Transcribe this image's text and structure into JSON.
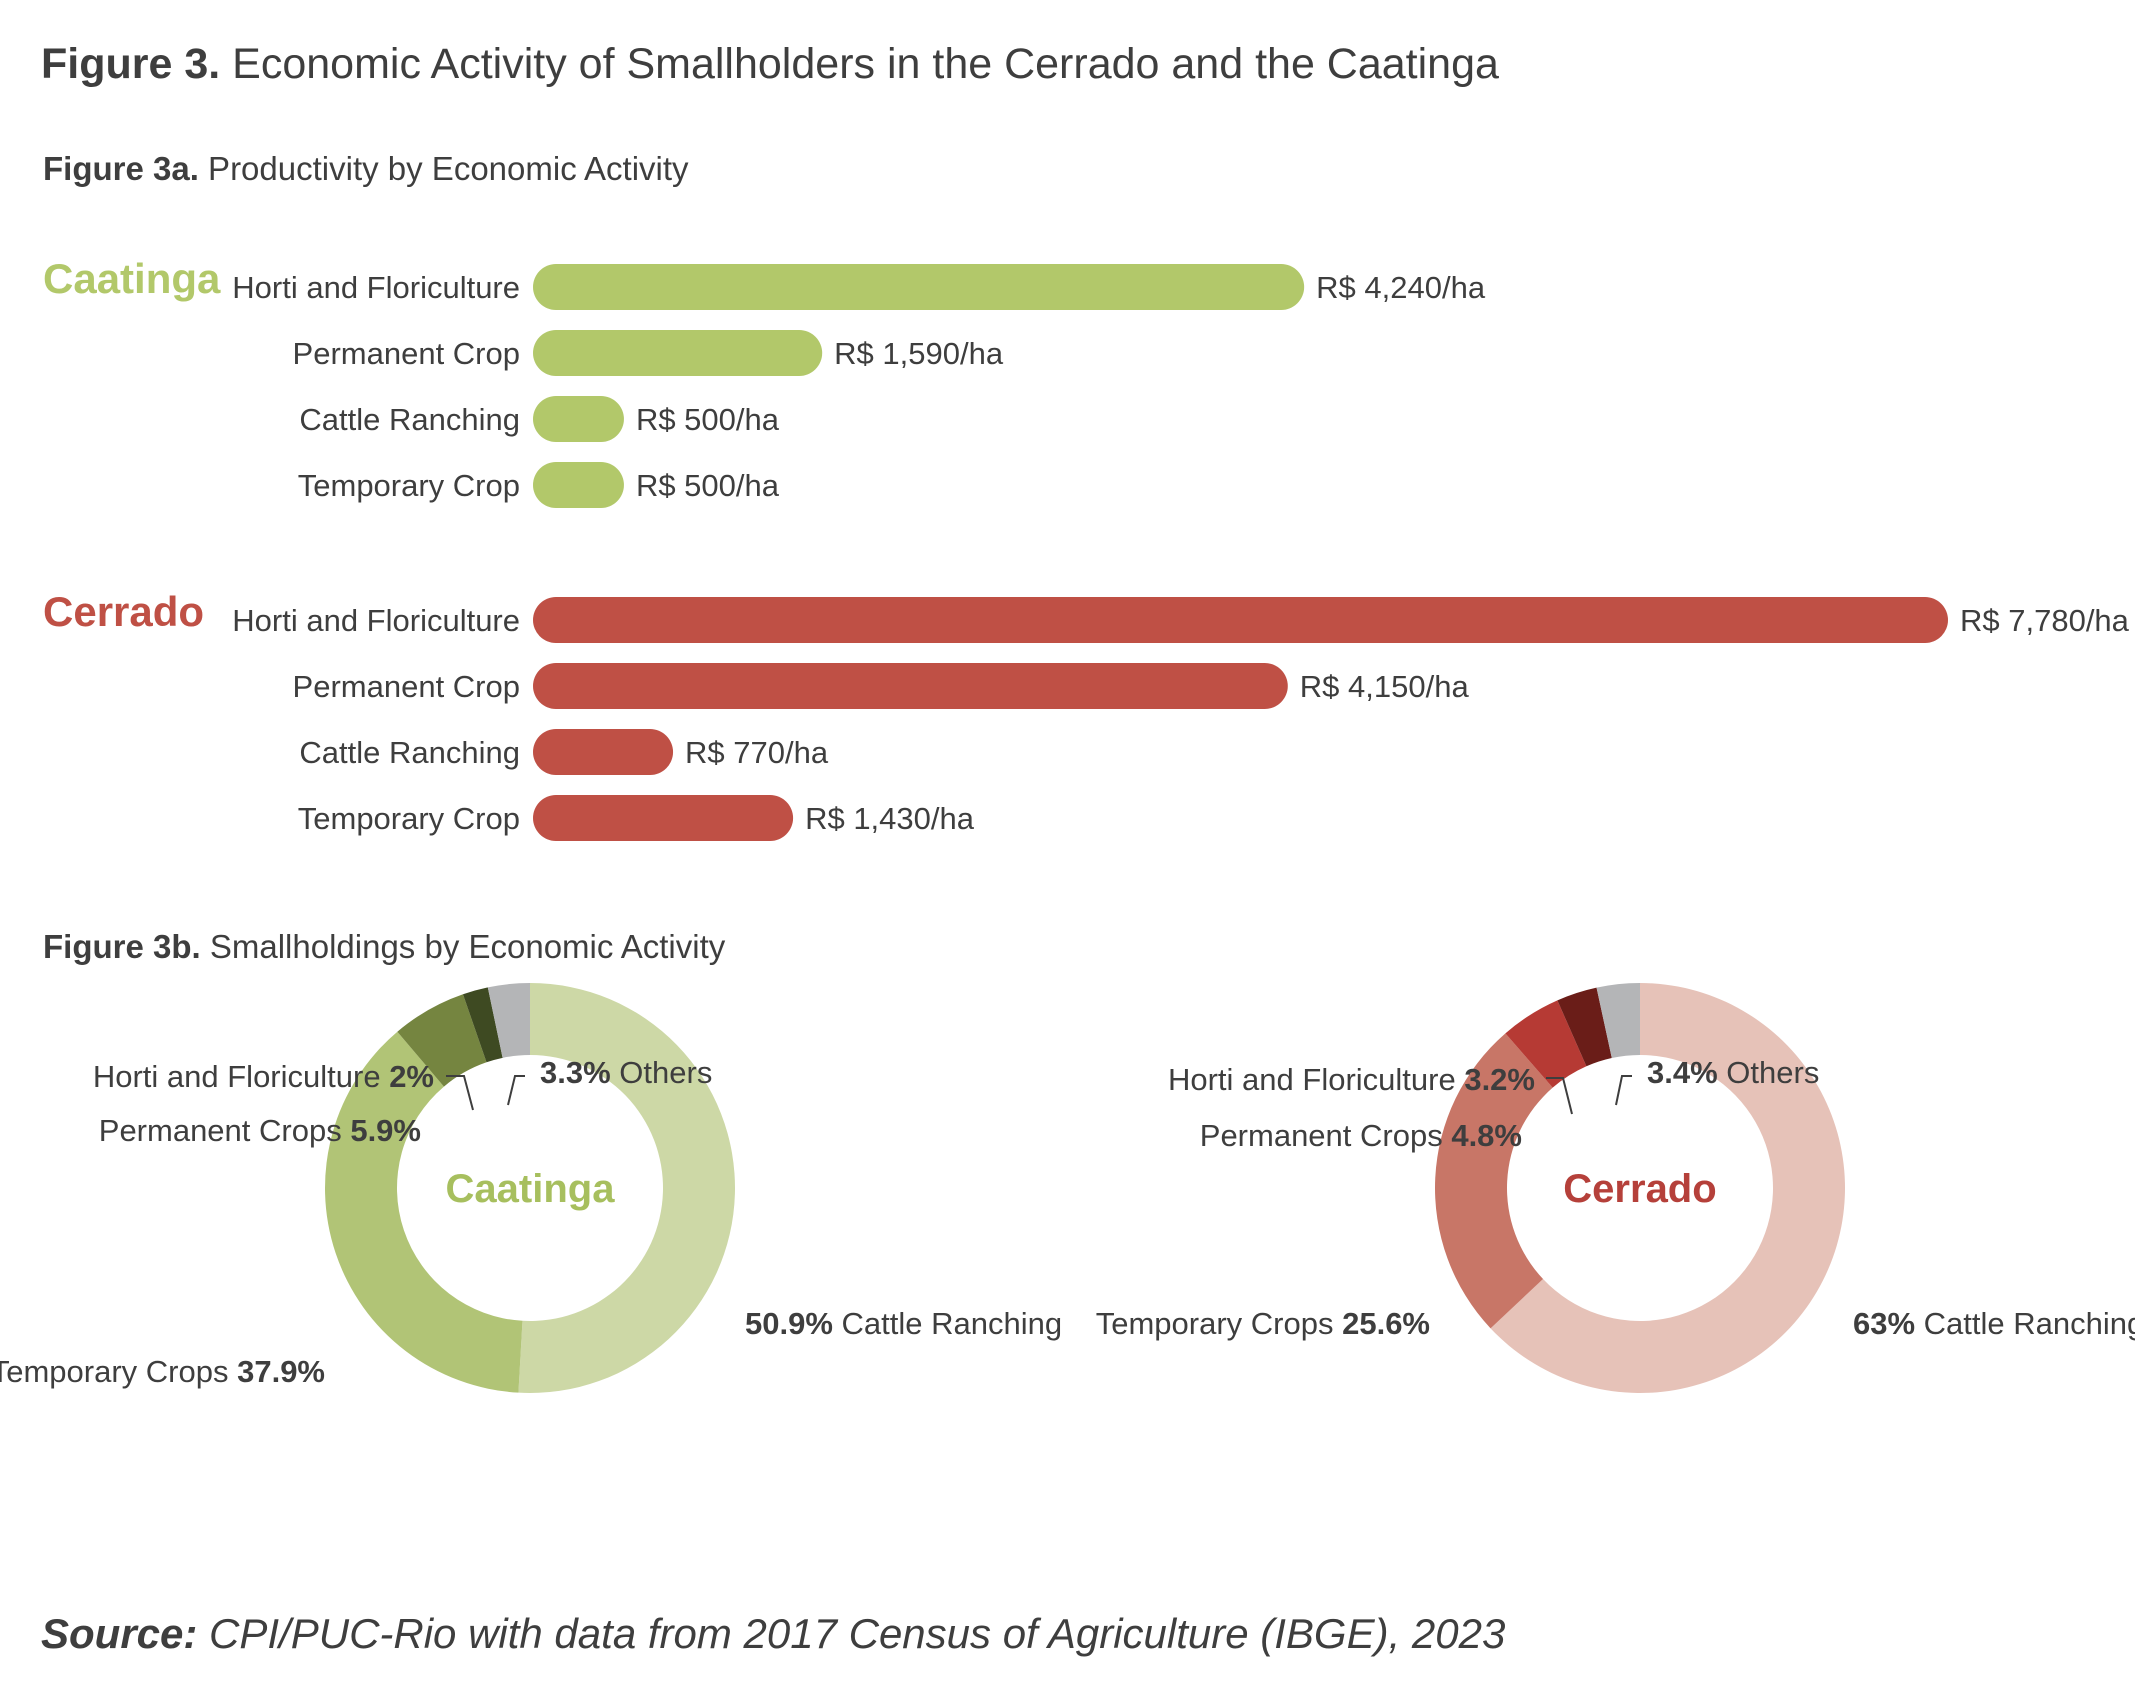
{
  "header": {
    "title_bold": "Figure 3.",
    "title_rest": " Economic Activity of Smallholders in the Cerrado and the Caatinga",
    "sub_a_bold": "Figure 3a.",
    "sub_a_rest": " Productivity by Economic Activity",
    "sub_b_bold": "Figure 3b.",
    "sub_b_rest": " Smallholdings by Economic Activity"
  },
  "footer": {
    "source_bold": "Source:",
    "source_rest": " CPI/PUC-Rio with data from 2017 Census of Agriculture (IBGE), 2023"
  },
  "chart_data": [
    {
      "type": "bar",
      "orientation": "horizontal",
      "groups": [
        {
          "name": "Caatinga",
          "color": "#b2c86a",
          "categories": [
            "Horti and Floriculture",
            "Permanent Crop",
            "Cattle Ranching",
            "Temporary Crop"
          ],
          "values": [
            4240,
            1590,
            500,
            500
          ],
          "labels": [
            "R$ 4,240/ha",
            "R$ 1,590/ha",
            "R$ 500/ha",
            "R$ 500/ha"
          ]
        },
        {
          "name": "Cerrado",
          "color": "#bf5045",
          "categories": [
            "Horti and Floriculture",
            "Permanent Crop",
            "Cattle Ranching",
            "Temporary Crop"
          ],
          "values": [
            7780,
            4150,
            770,
            1430
          ],
          "labels": [
            "R$ 7,780/ha",
            "R$ 4,150/ha",
            "R$ 770/ha",
            "R$ 1,430/ha"
          ]
        }
      ],
      "unit": "R$/ha",
      "xlim": [
        0,
        7780
      ]
    },
    {
      "type": "pie",
      "donut": true,
      "center_label": "Caatinga",
      "center_color": "#a7bf5e",
      "slices": [
        {
          "name": "Cattle Ranching",
          "value": 50.9,
          "label": "50.9%",
          "color": "#cdd8a6"
        },
        {
          "name": "Temporary Crops",
          "value": 37.9,
          "label": "37.9%",
          "color": "#b1c476"
        },
        {
          "name": "Permanent Crops",
          "value": 5.9,
          "label": "5.9%",
          "color": "#758540"
        },
        {
          "name": "Horti and Floriculture",
          "value": 2,
          "label": "2%",
          "color": "#3e4a22"
        },
        {
          "name": "Others",
          "value": 3.3,
          "label": "3.3%",
          "color": "#b4b5b7"
        }
      ]
    },
    {
      "type": "pie",
      "donut": true,
      "center_label": "Cerrado",
      "center_color": "#b5403a",
      "slices": [
        {
          "name": "Cattle Ranching",
          "value": 63,
          "label": "63%",
          "color": "#e6c2b8"
        },
        {
          "name": "Temporary Crops",
          "value": 25.6,
          "label": "25.6%",
          "color": "#c87667"
        },
        {
          "name": "Permanent Crops",
          "value": 4.8,
          "label": "4.8%",
          "color": "#b63a34"
        },
        {
          "name": "Horti and Floriculture",
          "value": 3.2,
          "label": "3.2%",
          "color": "#6a1d18"
        },
        {
          "name": "Others",
          "value": 3.4,
          "label": "3.4%",
          "color": "#b4b5b7"
        }
      ]
    }
  ]
}
